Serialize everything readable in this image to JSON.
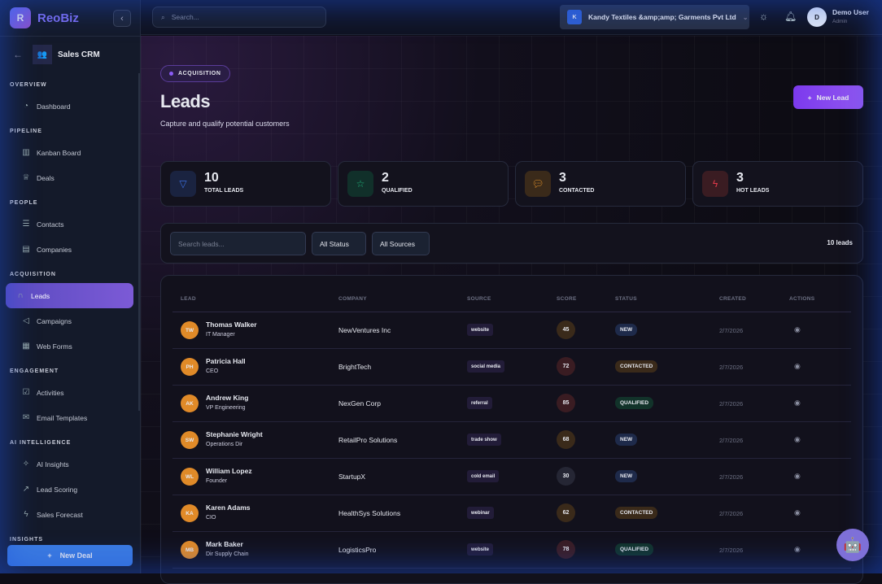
{
  "brand": {
    "logo": "R",
    "name": "ReoBiz"
  },
  "module": {
    "name": "Sales CRM"
  },
  "sidebar": {
    "sections": [
      {
        "title": "OVERVIEW",
        "items": [
          {
            "label": "Dashboard",
            "icon": "gauge-icon"
          }
        ]
      },
      {
        "title": "PIPELINE",
        "items": [
          {
            "label": "Kanban Board",
            "icon": "kanban-icon"
          },
          {
            "label": "Deals",
            "icon": "trophy-icon"
          }
        ]
      },
      {
        "title": "PEOPLE",
        "items": [
          {
            "label": "Contacts",
            "icon": "contacts-icon"
          },
          {
            "label": "Companies",
            "icon": "building-icon"
          }
        ]
      },
      {
        "title": "ACQUISITION",
        "items": [
          {
            "label": "Leads",
            "icon": "magnet-icon",
            "active": true
          },
          {
            "label": "Campaigns",
            "icon": "megaphone-icon"
          },
          {
            "label": "Web Forms",
            "icon": "forms-icon"
          }
        ]
      },
      {
        "title": "ENGAGEMENT",
        "items": [
          {
            "label": "Activities",
            "icon": "calendar-check-icon"
          },
          {
            "label": "Email Templates",
            "icon": "mail-icon"
          }
        ]
      },
      {
        "title": "AI INTELLIGENCE",
        "items": [
          {
            "label": "AI Insights",
            "icon": "sparkles-icon"
          },
          {
            "label": "Lead Scoring",
            "icon": "chart-line-icon"
          },
          {
            "label": "Sales Forecast",
            "icon": "bolt-icon"
          }
        ]
      },
      {
        "title": "INSIGHTS",
        "items": []
      }
    ],
    "new_deal": "New Deal"
  },
  "topbar": {
    "search_placeholder": "Search...",
    "org": {
      "initial": "K",
      "name": "Kandy Textiles &amp;amp; Garments Pvt Ltd"
    },
    "user": {
      "initial": "D",
      "name": "Demo User",
      "role": "Admin"
    }
  },
  "page": {
    "badge": "ACQUISITION",
    "title": "Leads",
    "subtitle": "Capture and qualify potential customers",
    "new_lead": "New Lead"
  },
  "stats": [
    {
      "value": "10",
      "label": "TOTAL LEADS",
      "icon": "funnel-icon",
      "color": "#3b6fe0",
      "bg": "#1a2340"
    },
    {
      "value": "2",
      "label": "QUALIFIED",
      "icon": "star-icon",
      "color": "#1fb27a",
      "bg": "#11302a"
    },
    {
      "value": "3",
      "label": "CONTACTED",
      "icon": "chat-icon",
      "color": "#e0902a",
      "bg": "#3a2a1a"
    },
    {
      "value": "3",
      "label": "HOT LEADS",
      "icon": "bolt-icon",
      "color": "#e03a4a",
      "bg": "#3a1c22"
    }
  ],
  "filters": {
    "search_placeholder": "Search leads...",
    "status": "All Status",
    "source": "All Sources",
    "count": "10 leads"
  },
  "table": {
    "headers": [
      "LEAD",
      "COMPANY",
      "SOURCE",
      "SCORE",
      "STATUS",
      "CREATED",
      "ACTIONS"
    ],
    "rows": [
      {
        "initials": "TW",
        "name": "Thomas Walker",
        "title": "IT Manager",
        "company": "NewVentures Inc",
        "source": "website",
        "score": "45",
        "status": "NEW",
        "created": "2/7/2026"
      },
      {
        "initials": "PH",
        "name": "Patricia Hall",
        "title": "CEO",
        "company": "BrightTech",
        "source": "social media",
        "score": "72",
        "status": "CONTACTED",
        "created": "2/7/2026"
      },
      {
        "initials": "AK",
        "name": "Andrew King",
        "title": "VP Engineering",
        "company": "NexGen Corp",
        "source": "referral",
        "score": "85",
        "status": "QUALIFIED",
        "created": "2/7/2026"
      },
      {
        "initials": "SW",
        "name": "Stephanie Wright",
        "title": "Operations Dir",
        "company": "RetailPro Solutions",
        "source": "trade show",
        "score": "68",
        "status": "NEW",
        "created": "2/7/2026"
      },
      {
        "initials": "WL",
        "name": "William Lopez",
        "title": "Founder",
        "company": "StartupX",
        "source": "cold email",
        "score": "30",
        "status": "NEW",
        "created": "2/7/2026"
      },
      {
        "initials": "KA",
        "name": "Karen Adams",
        "title": "CIO",
        "company": "HealthSys Solutions",
        "source": "webinar",
        "score": "62",
        "status": "CONTACTED",
        "created": "2/7/2026"
      },
      {
        "initials": "MB",
        "name": "Mark Baker",
        "title": "Dir Supply Chain",
        "company": "LogisticsPro",
        "source": "website",
        "score": "78",
        "status": "QUALIFIED",
        "created": "2/7/2026"
      }
    ]
  },
  "colors": {
    "accent": "#7c3aed",
    "new": "#1e2a4a",
    "contacted": "#3a2a1a",
    "qualified": "#12332a"
  }
}
